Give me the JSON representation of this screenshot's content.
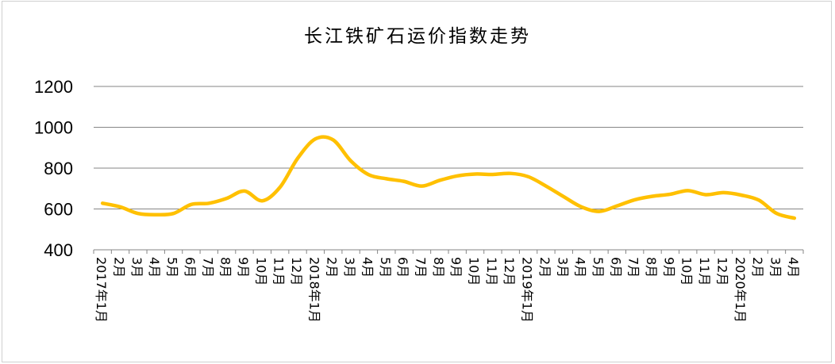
{
  "chart_data": {
    "type": "line",
    "title": "长江铁矿石运价指数走势",
    "xlabel": "",
    "ylabel": "",
    "ylim": [
      400,
      1200
    ],
    "yticks": [
      400,
      600,
      800,
      1000,
      1200
    ],
    "grid": true,
    "legend": "none",
    "categories": [
      "2017年1月",
      "2月",
      "3月",
      "4月",
      "5月",
      "6月",
      "7月",
      "8月",
      "9月",
      "10月",
      "11月",
      "12月",
      "2018年1月",
      "2月",
      "3月",
      "4月",
      "5月",
      "6月",
      "7月",
      "8月",
      "9月",
      "10月",
      "11月",
      "12月",
      "2019年1月",
      "2月",
      "3月",
      "4月",
      "5月",
      "6月",
      "7月",
      "8月",
      "9月",
      "10月",
      "11月",
      "12月",
      "2020年1月",
      "2月",
      "3月",
      "4月"
    ],
    "series": [
      {
        "values": [
          628,
          610,
          578,
          572,
          578,
          622,
          628,
          652,
          688,
          640,
          706,
          848,
          943,
          938,
          835,
          768,
          748,
          735,
          712,
          740,
          762,
          771,
          769,
          774,
          758,
          712,
          660,
          610,
          588,
          615,
          645,
          662,
          672,
          690,
          670,
          680,
          668,
          643,
          578,
          555
        ]
      }
    ],
    "line_color": "#FFC000",
    "grid_color": "#868686"
  }
}
